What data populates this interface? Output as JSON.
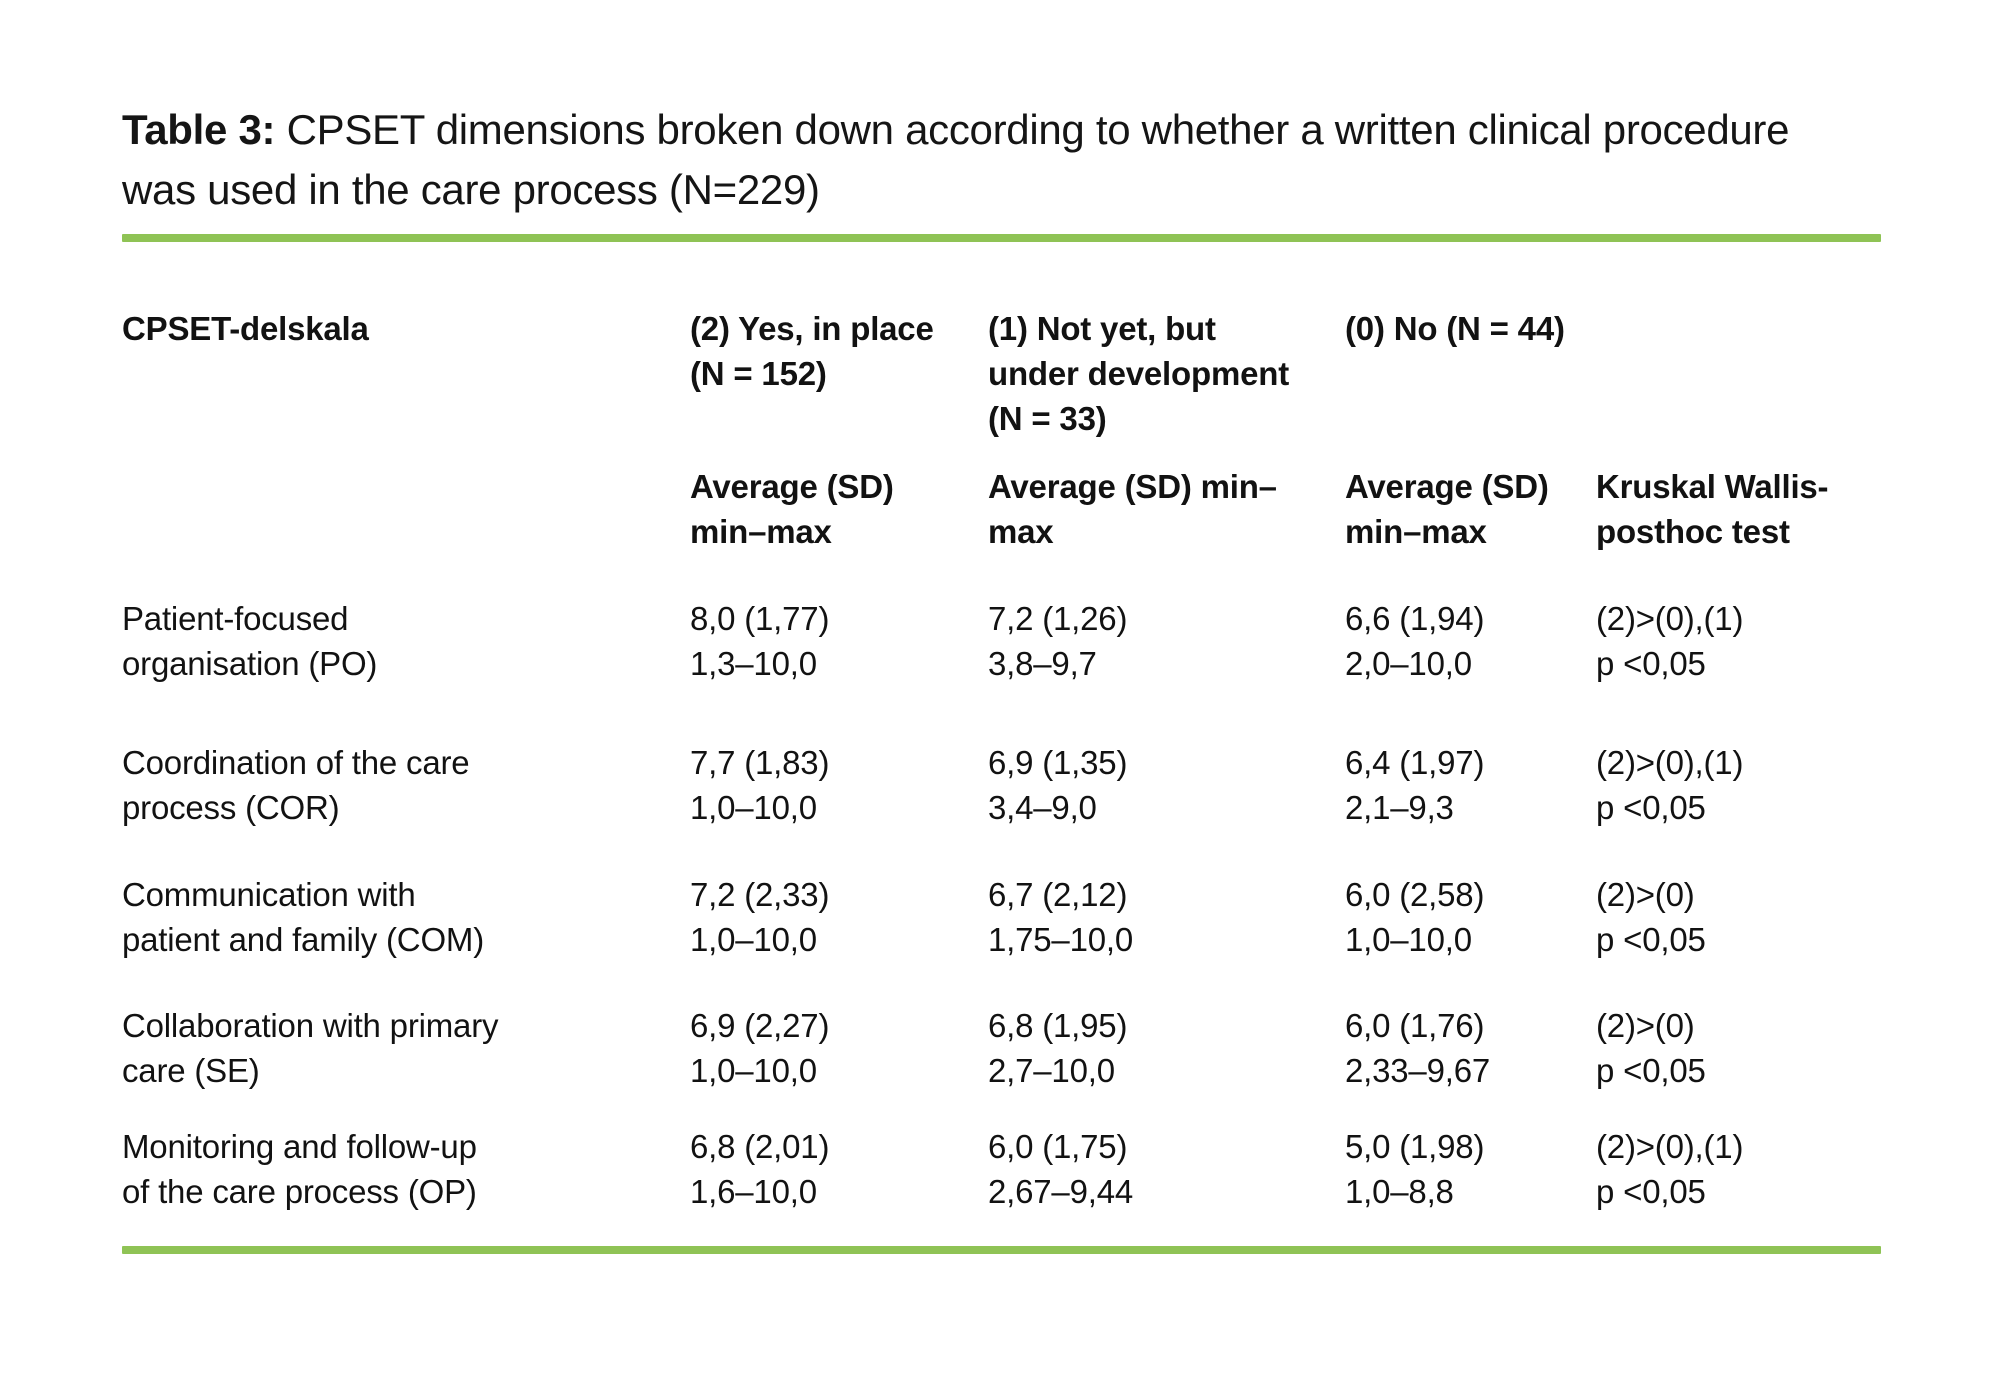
{
  "colors": {
    "rule_green": "#8fc355",
    "text": "#151515",
    "background": "#ffffff"
  },
  "caption": {
    "label": "Table 3:",
    "line1": " CPSET dimensions broken down according to whether a written clinical procedure",
    "line2": "was used in the care process (N=229)"
  },
  "table": {
    "header": {
      "col1": "CPSET-delskala",
      "col2": "(2) Yes, in place\n(N = 152)",
      "col3": "(1) Not yet, but\nunder development\n(N = 33)",
      "col4": "(0) No (N = 44)",
      "col5": ""
    },
    "subheader": {
      "col1": "",
      "col2": "Average (SD)\nmin–max",
      "col3": "Average (SD) min–\nmax",
      "col4": "Average (SD)\nmin–max",
      "col5": "Kruskal Wallis-\nposthoc test"
    },
    "rows": [
      {
        "dimension": "Patient-focused\norganisation (PO)",
        "yes_in_place": "8,0 (1,77)\n1,3–10,0",
        "not_yet": "7,2 (1,26)\n3,8–9,7",
        "no": "6,6 (1,94)\n2,0–10,0",
        "posthoc": "(2)>(0),(1)\np <0,05"
      },
      {
        "dimension": "Coordination of the care\nprocess (COR)",
        "yes_in_place": "7,7 (1,83)\n1,0–10,0",
        "not_yet": "6,9 (1,35)\n3,4–9,0",
        "no": "6,4 (1,97)\n2,1–9,3",
        "posthoc": "(2)>(0),(1)\np <0,05"
      },
      {
        "dimension": "Communication with\npatient and family (COM)",
        "yes_in_place": "7,2 (2,33)\n1,0–10,0",
        "not_yet": "6,7 (2,12)\n1,75–10,0",
        "no": "6,0 (2,58)\n1,0–10,0",
        "posthoc": "(2)>(0)\np <0,05"
      },
      {
        "dimension": "Collaboration with primary\ncare (SE)",
        "yes_in_place": "6,9 (2,27)\n1,0–10,0",
        "not_yet": "6,8 (1,95)\n2,7–10,0",
        "no": "6,0 (1,76)\n2,33–9,67",
        "posthoc": "(2)>(0)\np <0,05"
      },
      {
        "dimension": "Monitoring and follow-up\nof the care process (OP)",
        "yes_in_place": "6,8 (2,01)\n1,6–10,0",
        "not_yet": "6,0 (1,75)\n2,67–9,44",
        "no": "5,0 (1,98)\n1,0–8,8",
        "posthoc": "(2)>(0),(1)\np <0,05"
      }
    ]
  }
}
